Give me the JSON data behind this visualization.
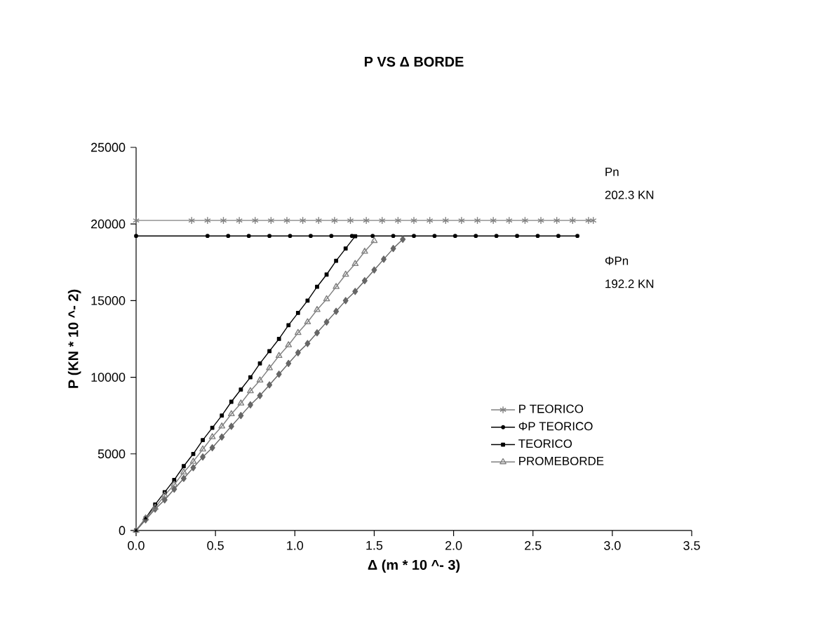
{
  "chart_data": {
    "type": "line",
    "title": "P VS Δ BORDE",
    "xlabel": "Δ (m * 10 ^- 3)",
    "ylabel": "P (KN * 10 ^- 2)",
    "xlim": [
      0,
      3.5
    ],
    "ylim": [
      0,
      25000
    ],
    "xticks": [
      {
        "value": 0,
        "label": "0.0"
      },
      {
        "value": 0.5,
        "label": "0.5"
      },
      {
        "value": 1,
        "label": "1.0"
      },
      {
        "value": 1.5,
        "label": "1.5"
      },
      {
        "value": 2,
        "label": "2.0"
      },
      {
        "value": 2.5,
        "label": "2.5"
      },
      {
        "value": 3,
        "label": "3.0"
      },
      {
        "value": 3.5,
        "label": "3.5"
      }
    ],
    "yticks": [
      0,
      5000,
      10000,
      15000,
      20000,
      25000
    ],
    "grid": false,
    "legend": "right",
    "annotations": [
      "Pn",
      "202.3 KN",
      "ΦPn",
      "192.2 KN"
    ],
    "series": [
      {
        "name": "P TEORICO",
        "color": "#808080",
        "marker": "cross",
        "x": [
          0,
          0.35,
          0.45,
          0.55,
          0.65,
          0.75,
          0.85,
          0.95,
          1.05,
          1.15,
          1.25,
          1.35,
          1.45,
          1.55,
          1.65,
          1.75,
          1.85,
          1.95,
          2.05,
          2.15,
          2.25,
          2.35,
          2.45,
          2.55,
          2.65,
          2.75,
          2.85,
          2.88
        ],
        "values": [
          20230,
          20230,
          20230,
          20230,
          20230,
          20230,
          20230,
          20230,
          20230,
          20230,
          20230,
          20230,
          20230,
          20230,
          20230,
          20230,
          20230,
          20230,
          20230,
          20230,
          20230,
          20230,
          20230,
          20230,
          20230,
          20230,
          20230,
          20230
        ]
      },
      {
        "name": "ΦP TEORICO",
        "color": "#000000",
        "marker": "circle",
        "x": [
          0,
          0.45,
          0.58,
          0.71,
          0.84,
          0.97,
          1.1,
          1.23,
          1.36,
          1.49,
          1.62,
          1.75,
          1.88,
          2.01,
          2.14,
          2.27,
          2.4,
          2.53,
          2.66,
          2.78
        ],
        "values": [
          19220,
          19220,
          19220,
          19220,
          19220,
          19220,
          19220,
          19220,
          19220,
          19220,
          19220,
          19220,
          19220,
          19220,
          19220,
          19220,
          19220,
          19220,
          19220,
          19220
        ]
      },
      {
        "color": "#666666",
        "marker": "diamond",
        "x": [
          0,
          0.06,
          0.12,
          0.18,
          0.24,
          0.3,
          0.36,
          0.42,
          0.48,
          0.54,
          0.6,
          0.66,
          0.72,
          0.78,
          0.84,
          0.9,
          0.96,
          1.02,
          1.08,
          1.14,
          1.2,
          1.26,
          1.32,
          1.38,
          1.44,
          1.5,
          1.56,
          1.62,
          1.68
        ],
        "values": [
          0,
          700,
          1400,
          2000,
          2700,
          3400,
          4100,
          4800,
          5400,
          6100,
          6800,
          7500,
          8200,
          8800,
          9500,
          10200,
          10900,
          11600,
          12200,
          12900,
          13600,
          14300,
          15000,
          15600,
          16300,
          17000,
          17700,
          18400,
          19000
        ]
      },
      {
        "name": "TEORICO",
        "color": "#000000",
        "marker": "square",
        "x": [
          0,
          0.06,
          0.12,
          0.18,
          0.24,
          0.3,
          0.36,
          0.42,
          0.48,
          0.54,
          0.6,
          0.66,
          0.72,
          0.78,
          0.84,
          0.9,
          0.96,
          1.02,
          1.08,
          1.14,
          1.2,
          1.26,
          1.32,
          1.38
        ],
        "values": [
          0,
          800,
          1700,
          2500,
          3300,
          4200,
          5000,
          5900,
          6700,
          7500,
          8400,
          9200,
          10000,
          10900,
          11700,
          12500,
          13400,
          14200,
          15000,
          15900,
          16700,
          17600,
          18400,
          19200
        ]
      },
      {
        "name": "PROMEBORDE",
        "color": "#808080",
        "marker": "triangle",
        "x": [
          0,
          0.06,
          0.12,
          0.18,
          0.24,
          0.3,
          0.36,
          0.42,
          0.48,
          0.54,
          0.6,
          0.66,
          0.72,
          0.78,
          0.84,
          0.9,
          0.96,
          1.02,
          1.08,
          1.14,
          1.2,
          1.26,
          1.32,
          1.38,
          1.44,
          1.5
        ],
        "values": [
          0,
          800,
          1500,
          2300,
          3000,
          3800,
          4500,
          5300,
          6100,
          6800,
          7600,
          8300,
          9100,
          9800,
          10600,
          11400,
          12100,
          12900,
          13600,
          14400,
          15100,
          15900,
          16700,
          17400,
          18200,
          18900
        ]
      }
    ]
  }
}
